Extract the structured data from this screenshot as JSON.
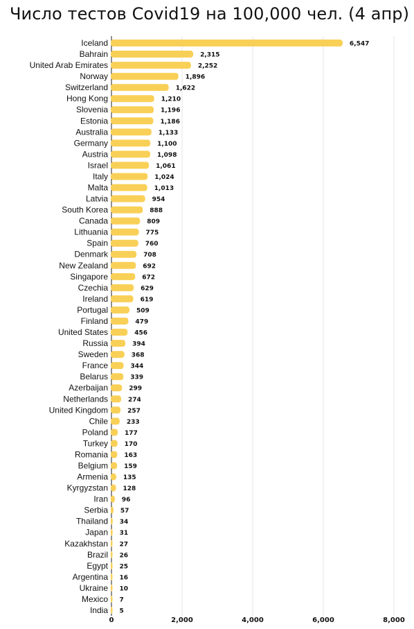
{
  "title": "Число тестов Covid19 на 100,000 чел. (4 апр)",
  "chart_data": {
    "type": "bar",
    "orientation": "horizontal",
    "title": "Число тестов Covid19 на 100,000 чел. (4 апр)",
    "xlabel": "",
    "ylabel": "",
    "xlim": [
      0,
      8000
    ],
    "xticks": [
      "0",
      "2,000",
      "4,000",
      "6,000",
      "8,000"
    ],
    "grid": true,
    "bar_color": "#f9d057",
    "categories": [
      "Iceland",
      "Bahrain",
      "United Arab Emirates",
      "Norway",
      "Switzerland",
      "Hong Kong",
      "Slovenia",
      "Estonia",
      "Australia",
      "Germany",
      "Austria",
      "Israel",
      "Italy",
      "Malta",
      "Latvia",
      "South Korea",
      "Canada",
      "Lithuania",
      "Spain",
      "Denmark",
      "New Zealand",
      "Singapore",
      "Czechia",
      "Ireland",
      "Portugal",
      "Finland",
      "United States",
      "Russia",
      "Sweden",
      "France",
      "Belarus",
      "Azerbaijan",
      "Netherlands",
      "United Kingdom",
      "Chile",
      "Poland",
      "Turkey",
      "Romania",
      "Belgium",
      "Armenia",
      "Kyrgyzstan",
      "Iran",
      "Serbia",
      "Thailand",
      "Japan",
      "Kazakhstan",
      "Brazil",
      "Egypt",
      "Argentina",
      "Ukraine",
      "Mexico",
      "India"
    ],
    "values": [
      6547,
      2315,
      2252,
      1896,
      1622,
      1210,
      1196,
      1186,
      1133,
      1100,
      1098,
      1061,
      1024,
      1013,
      954,
      888,
      809,
      775,
      760,
      708,
      692,
      672,
      629,
      619,
      509,
      479,
      456,
      394,
      368,
      344,
      339,
      299,
      274,
      257,
      233,
      177,
      170,
      163,
      159,
      135,
      128,
      96,
      57,
      34,
      31,
      27,
      26,
      25,
      16,
      10,
      7,
      5
    ],
    "value_labels": [
      "6,547",
      "2,315",
      "2,252",
      "1,896",
      "1,622",
      "1,210",
      "1,196",
      "1,186",
      "1,133",
      "1,100",
      "1,098",
      "1,061",
      "1,024",
      "1,013",
      "954",
      "888",
      "809",
      "775",
      "760",
      "708",
      "692",
      "672",
      "629",
      "619",
      "509",
      "479",
      "456",
      "394",
      "368",
      "344",
      "339",
      "299",
      "274",
      "257",
      "233",
      "177",
      "170",
      "163",
      "159",
      "135",
      "128",
      "96",
      "57",
      "34",
      "31",
      "27",
      "26",
      "25",
      "16",
      "10",
      "7",
      "5"
    ]
  }
}
